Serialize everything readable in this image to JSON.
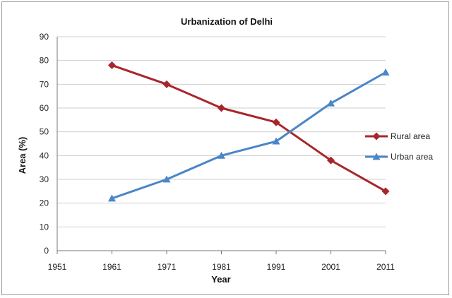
{
  "chart_data": {
    "type": "line",
    "title": "Urbanization of Delhi",
    "xlabel": "Year",
    "ylabel": "Area (%)",
    "x_ticks": [
      "1951",
      "1961",
      "1971",
      "1981",
      "1991",
      "2001",
      "2011"
    ],
    "x": [
      1961,
      1971,
      1981,
      1991,
      2001,
      2011
    ],
    "xlim": [
      1951,
      2011
    ],
    "ylim": [
      0,
      90
    ],
    "y_ticks": [
      "0",
      "10",
      "20",
      "30",
      "40",
      "50",
      "60",
      "70",
      "80",
      "90"
    ],
    "grid": true,
    "legend_position": "right",
    "series": [
      {
        "name": "Rural area",
        "values": [
          78,
          70,
          60,
          54,
          38,
          25
        ],
        "color": "#a8262b",
        "marker": "diamond"
      },
      {
        "name": "Urban area",
        "values": [
          22,
          30,
          40,
          46,
          62,
          75
        ],
        "color": "#4a86c8",
        "marker": "triangle"
      }
    ]
  }
}
